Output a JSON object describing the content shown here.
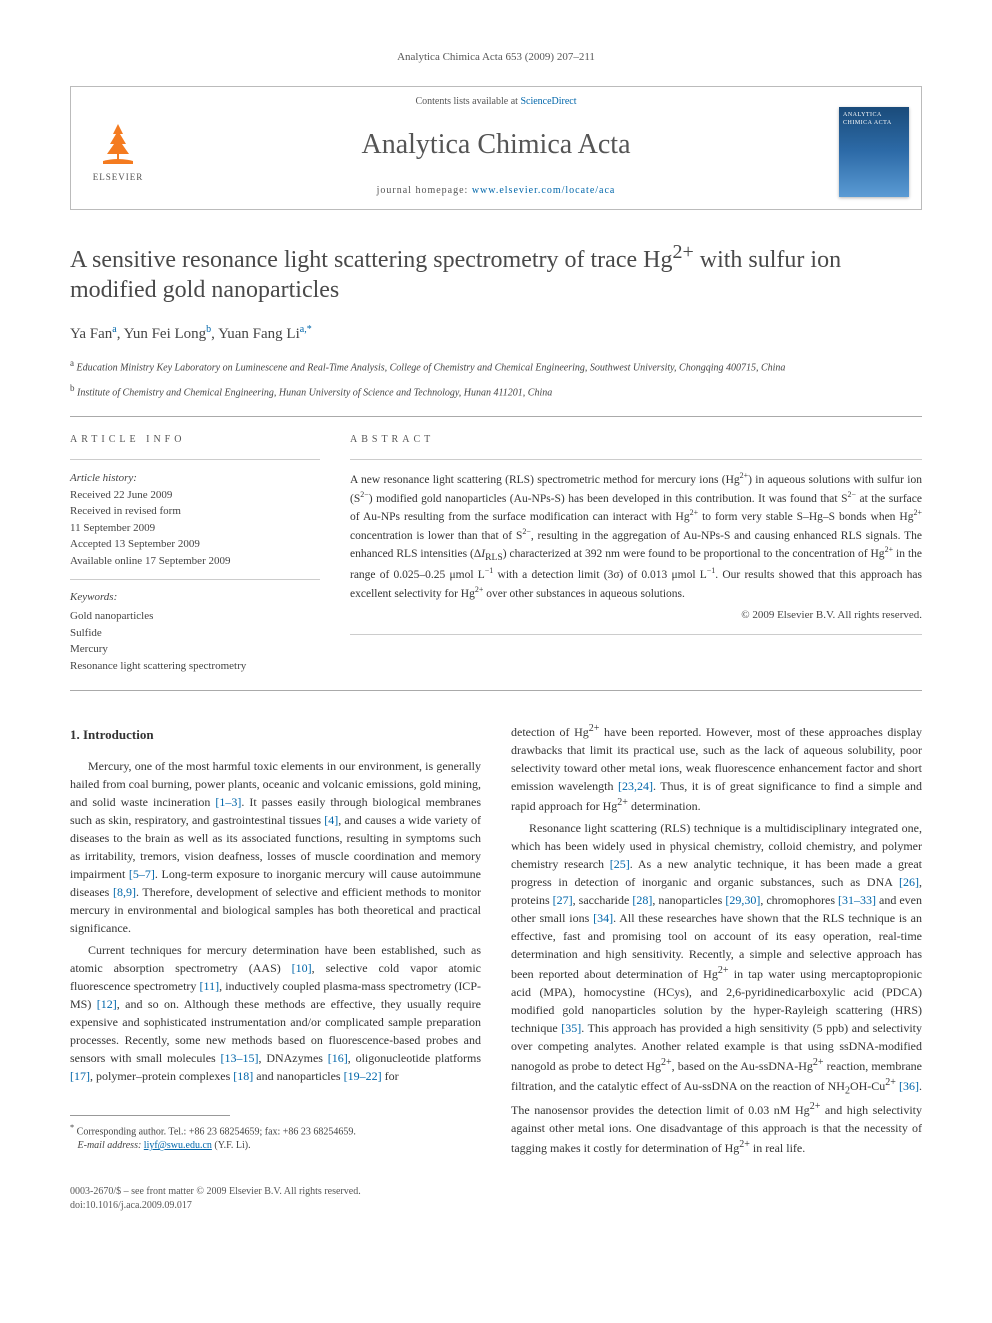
{
  "running_header": "Analytica Chimica Acta 653 (2009) 207–211",
  "masthead": {
    "contents_prefix": "Contents lists available at ",
    "contents_link": "ScienceDirect",
    "journal_name": "Analytica Chimica Acta",
    "homepage_prefix": "journal homepage: ",
    "homepage_link": "www.elsevier.com/locate/aca",
    "publisher": "ELSEVIER",
    "cover_label": "ANALYTICA CHIMICA ACTA"
  },
  "title_parts": {
    "p1": "A sensitive resonance light scattering spectrometry of trace Hg",
    "p2": "2+",
    "p3": " with sulfur ion modified gold nanoparticles"
  },
  "authors": [
    {
      "name": "Ya Fan",
      "aff": "a"
    },
    {
      "name": "Yun Fei Long",
      "aff": "b"
    },
    {
      "name": "Yuan Fang Li",
      "aff": "a,",
      "corr": true
    }
  ],
  "affiliations": [
    {
      "key": "a",
      "text": "Education Ministry Key Laboratory on Luminescene and Real-Time Analysis, College of Chemistry and Chemical Engineering, Southwest University, Chongqing 400715, China"
    },
    {
      "key": "b",
      "text": "Institute of Chemistry and Chemical Engineering, Hunan University of Science and Technology, Hunan 411201, China"
    }
  ],
  "info": {
    "label": "ARTICLE INFO",
    "history_label": "Article history:",
    "history": [
      "Received 22 June 2009",
      "Received in revised form",
      "11 September 2009",
      "Accepted 13 September 2009",
      "Available online 17 September 2009"
    ],
    "keywords_label": "Keywords:",
    "keywords": [
      "Gold nanoparticles",
      "Sulfide",
      "Mercury",
      "Resonance light scattering spectrometry"
    ]
  },
  "abstract": {
    "label": "ABSTRACT",
    "text": "A new resonance light scattering (RLS) spectrometric method for mercury ions (Hg2+) in aqueous solutions with sulfur ion (S2−) modified gold nanoparticles (Au-NPs-S) has been developed in this contribution. It was found that S2− at the surface of Au-NPs resulting from the surface modification can interact with Hg2+ to form very stable S–Hg–S bonds when Hg2+ concentration is lower than that of S2−, resulting in the aggregation of Au-NPs-S and causing enhanced RLS signals. The enhanced RLS intensities (ΔIRLS) characterized at 392 nm were found to be proportional to the concentration of Hg2+ in the range of 0.025–0.25 μmol L−1 with a detection limit (3σ) of 0.013 μmol L−1. Our results showed that this approach has excellent selectivity for Hg2+ over other substances in aqueous solutions.",
    "copyright": "© 2009 Elsevier B.V. All rights reserved."
  },
  "body": {
    "section_heading": "1. Introduction",
    "col1_p1": "Mercury, one of the most harmful toxic elements in our environment, is generally hailed from coal burning, power plants, oceanic and volcanic emissions, gold mining, and solid waste incineration [1–3]. It passes easily through biological membranes such as skin, respiratory, and gastrointestinal tissues [4], and causes a wide variety of diseases to the brain as well as its associated functions, resulting in symptoms such as irritability, tremors, vision deafness, losses of muscle coordination and memory impairment [5–7]. Long-term exposure to inorganic mercury will cause autoimmune diseases [8,9]. Therefore, development of selective and efficient methods to monitor mercury in environmental and biological samples has both theoretical and practical significance.",
    "col1_p2": "Current techniques for mercury determination have been established, such as atomic absorption spectrometry (AAS) [10], selective cold vapor atomic fluorescence spectrometry [11], inductively coupled plasma-mass spectrometry (ICP-MS) [12], and so on. Although these methods are effective, they usually require expensive and sophisticated instrumentation and/or complicated sample preparation processes. Recently, some new methods based on fluorescence-based probes and sensors with small molecules [13–15], DNAzymes [16], oligonucleotide platforms [17], polymer–protein complexes [18] and nanoparticles [19–22] for",
    "col2_p1": "detection of Hg2+ have been reported. However, most of these approaches display drawbacks that limit its practical use, such as the lack of aqueous solubility, poor selectivity toward other metal ions, weak fluorescence enhancement factor and short emission wavelength [23,24]. Thus, it is of great significance to find a simple and rapid approach for Hg2+ determination.",
    "col2_p2": "Resonance light scattering (RLS) technique is a multidisciplinary integrated one, which has been widely used in physical chemistry, colloid chemistry, and polymer chemistry research [25]. As a new analytic technique, it has been made a great progress in detection of inorganic and organic substances, such as DNA [26], proteins [27], saccharide [28], nanoparticles [29,30], chromophores [31–33] and even other small ions [34]. All these researches have shown that the RLS technique is an effective, fast and promising tool on account of its easy operation, real-time determination and high sensitivity. Recently, a simple and selective approach has been reported about determination of Hg2+ in tap water using mercaptopropionic acid (MPA), homocystine (HCys), and 2,6-pyridinedicarboxylic acid (PDCA) modified gold nanoparticles solution by the hyper-Rayleigh scattering (HRS) technique [35]. This approach has provided a high sensitivity (5 ppb) and selectivity over competing analytes. Another related example is that using ssDNA-modified nanogold as probe to detect Hg2+, based on the Au-ssDNA-Hg2+ reaction, membrane filtration, and the catalytic effect of Au-ssDNA on the reaction of NH2OH-Cu2+ [36]. The nanosensor provides the detection limit of 0.03 nM Hg2+ and high selectivity against other metal ions. One disadvantage of this approach is that the necessity of tagging makes it costly for determination of Hg2+ in real life."
  },
  "footnote": {
    "corr": "Corresponding author. Tel.: +86 23 68254659; fax: +86 23 68254659.",
    "email_label": "E-mail address:",
    "email": "liyf@swu.edu.cn",
    "email_suffix": "(Y.F. Li)."
  },
  "footer": {
    "left_line1": "0003-2670/$ – see front matter © 2009 Elsevier B.V. All rights reserved.",
    "left_line2": "doi:10.1016/j.aca.2009.09.017"
  },
  "colors": {
    "link": "#0066aa",
    "elsevier_orange": "#f47b20",
    "text": "#333333",
    "muted": "#555555",
    "rule": "#aaaaaa"
  }
}
